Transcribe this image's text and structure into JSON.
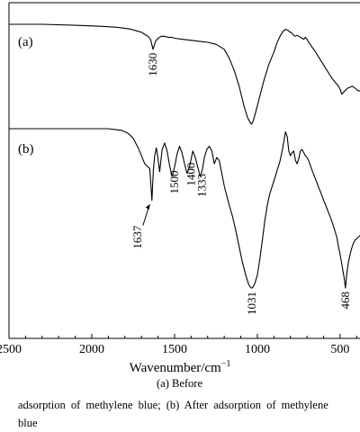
{
  "chart_data": {
    "type": "line",
    "xlabel": "Wavenumber/cm",
    "xlabel_sup": "−1",
    "xlim": [
      2500,
      380
    ],
    "x_ticks": [
      2500,
      2000,
      1500,
      1000,
      500
    ],
    "x_tick_labels": [
      "2500",
      "2000",
      "1500",
      "1000",
      "500"
    ],
    "reversed_x": true,
    "series": [
      {
        "name": "(a)",
        "curve_label": "(a)",
        "x": [
          2500,
          2300,
          2100,
          1950,
          1850,
          1800,
          1760,
          1720,
          1700,
          1680,
          1660,
          1645,
          1630,
          1615,
          1600,
          1580,
          1560,
          1540,
          1520,
          1500,
          1450,
          1400,
          1350,
          1300,
          1250,
          1200,
          1170,
          1140,
          1110,
          1080,
          1060,
          1045,
          1035,
          1025,
          1010,
          990,
          960,
          930,
          900,
          880,
          860,
          845,
          830,
          815,
          800,
          790,
          780,
          770,
          760,
          750,
          740,
          730,
          720,
          710,
          700,
          690,
          680,
          670,
          655,
          640,
          625,
          610,
          595,
          580,
          565,
          550,
          530,
          510,
          500,
          490,
          480,
          468,
          455,
          440,
          425,
          410,
          395,
          380
        ],
        "y": [
          10.0,
          10.0,
          9.9,
          9.8,
          9.7,
          9.6,
          9.5,
          9.3,
          9.2,
          9.0,
          8.8,
          8.5,
          7.5,
          8.3,
          8.6,
          8.8,
          8.8,
          8.7,
          8.7,
          8.6,
          8.5,
          8.4,
          8.3,
          8.2,
          8.0,
          7.5,
          6.6,
          5.4,
          3.8,
          1.8,
          0.7,
          0.2,
          0.0,
          0.3,
          1.2,
          2.5,
          4.4,
          6.0,
          7.2,
          8.2,
          8.9,
          9.3,
          9.5,
          9.4,
          9.2,
          9.1,
          8.9,
          8.8,
          8.9,
          8.8,
          8.7,
          8.6,
          8.5,
          8.7,
          8.5,
          8.2,
          8.0,
          7.7,
          7.4,
          7.0,
          6.6,
          6.2,
          5.8,
          5.4,
          5.0,
          4.6,
          4.2,
          3.8,
          3.5,
          3.0,
          3.2,
          3.4,
          3.6,
          3.7,
          3.8,
          3.6,
          3.4,
          3.3
        ]
      },
      {
        "name": "(b)",
        "curve_label": "(b)",
        "x": [
          2500,
          2300,
          2100,
          1900,
          1820,
          1780,
          1750,
          1720,
          1700,
          1680,
          1660,
          1650,
          1637,
          1628,
          1620,
          1610,
          1600,
          1590,
          1575,
          1560,
          1545,
          1530,
          1515,
          1500,
          1485,
          1470,
          1455,
          1440,
          1425,
          1410,
          1400,
          1390,
          1375,
          1360,
          1345,
          1333,
          1320,
          1305,
          1290,
          1275,
          1260,
          1245,
          1230,
          1215,
          1200,
          1185,
          1170,
          1150,
          1130,
          1110,
          1090,
          1070,
          1055,
          1045,
          1038,
          1031,
          1024,
          1015,
          1000,
          985,
          970,
          955,
          940,
          925,
          910,
          895,
          880,
          865,
          850,
          840,
          830,
          820,
          810,
          800,
          790,
          780,
          770,
          760,
          750,
          740,
          730,
          720,
          710,
          700,
          690,
          680,
          670,
          655,
          640,
          625,
          610,
          595,
          580,
          565,
          550,
          535,
          520,
          510,
          500,
          490,
          480,
          475,
          468,
          460,
          450,
          440,
          430,
          420,
          410,
          400,
          390,
          380
        ],
        "y": [
          10.0,
          10.0,
          10.0,
          10.0,
          9.9,
          9.7,
          9.4,
          8.8,
          8.3,
          7.8,
          7.6,
          7.5,
          5.5,
          7.4,
          8.3,
          8.8,
          8.1,
          7.3,
          8.7,
          9.1,
          8.6,
          7.7,
          7.0,
          7.6,
          8.4,
          8.9,
          8.5,
          7.8,
          7.2,
          7.6,
          8.1,
          8.6,
          8.2,
          7.6,
          7.0,
          7.4,
          8.2,
          8.7,
          8.9,
          8.6,
          7.8,
          8.2,
          8.0,
          7.2,
          6.4,
          5.8,
          5.2,
          4.5,
          3.6,
          2.6,
          1.6,
          0.8,
          0.3,
          0.1,
          0.0,
          0.0,
          0.1,
          0.3,
          0.8,
          1.8,
          3.0,
          4.2,
          5.2,
          5.9,
          6.4,
          6.9,
          7.4,
          7.9,
          8.6,
          9.2,
          9.8,
          9.5,
          8.6,
          8.3,
          8.5,
          8.6,
          8.0,
          7.8,
          8.1,
          8.6,
          8.7,
          8.5,
          8.3,
          8.2,
          8.0,
          7.7,
          7.4,
          7.0,
          6.6,
          6.2,
          5.8,
          5.4,
          5.0,
          4.6,
          4.2,
          3.7,
          3.2,
          2.6,
          2.1,
          1.5,
          0.9,
          0.6,
          0.0,
          0.9,
          1.6,
          2.1,
          2.5,
          2.8,
          3.0,
          3.1,
          3.2,
          3.3
        ]
      }
    ],
    "annotations": [
      {
        "series": "(a)",
        "label": "1630",
        "x": 1630
      },
      {
        "series": "(b)",
        "label": "1637",
        "x": 1637,
        "arrow": true
      },
      {
        "series": "(b)",
        "label": "1500",
        "x": 1500
      },
      {
        "series": "(b)",
        "label": "1400",
        "x": 1400
      },
      {
        "series": "(b)",
        "label": "1333",
        "x": 1333
      },
      {
        "series": "(b)",
        "label": "1031",
        "x": 1031
      },
      {
        "series": "(b)",
        "label": "468",
        "x": 468
      }
    ]
  },
  "caption": {
    "label": "(a)   Before",
    "text": "adsorption of methylene blue; (b) After adsorption of methylene blue"
  }
}
